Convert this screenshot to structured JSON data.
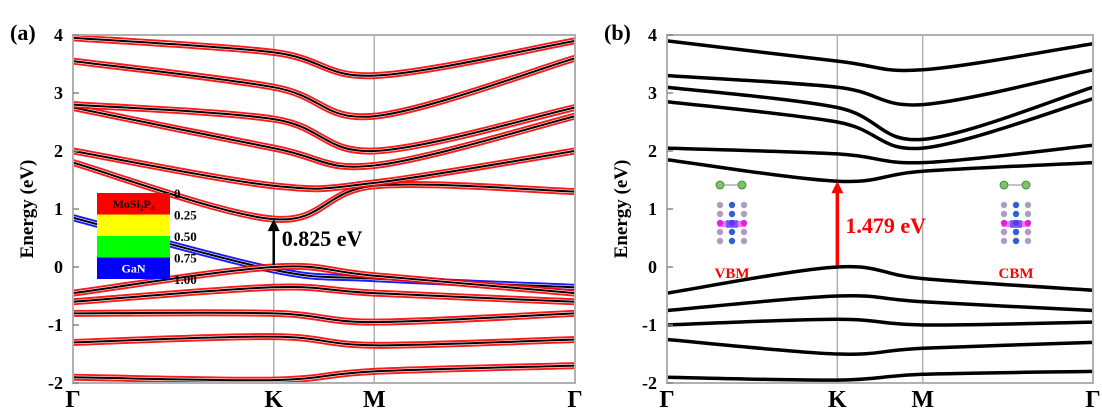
{
  "chart_data": [
    {
      "type": "line",
      "panel_label": "(a)",
      "ylabel": "Energy (eV)",
      "ylim": [
        -2,
        4
      ],
      "yticks": [
        "-2",
        "-1",
        "0",
        "1",
        "2",
        "3",
        "4"
      ],
      "xticks": [
        {
          "label": "Γ",
          "k": 0
        },
        {
          "label": "K",
          "k": 0.577
        },
        {
          "label": "M",
          "k": 0.866
        },
        {
          "label": "Γ",
          "k": 1.443
        }
      ],
      "grid": false,
      "annotation": {
        "text": "0.825 eV",
        "k": 0.577,
        "from": 0.0,
        "to": 0.825,
        "color": "#000000"
      },
      "legend": {
        "placement": "left",
        "type": "colorbar",
        "labels": [
          "0",
          "0.25",
          "0.50",
          "0.75",
          "1.00"
        ],
        "segments": [
          {
            "name": "MoSi₂P₄",
            "color": "#ff0000"
          },
          {
            "name": "",
            "color": "#ffff00"
          },
          {
            "name": "",
            "color": "#00ff00"
          },
          {
            "name": "GaN",
            "color": "#0000ff"
          }
        ]
      },
      "projection_colors": {
        "MoSi2P4": "#ff0000",
        "mixed_high": "#ffff00",
        "mixed_low": "#00ff00",
        "GaN": "#0000ff"
      },
      "series": [
        {
          "x": [
            0,
            0.577,
            0.866,
            1.443
          ],
          "y": [
            0.85,
            -0.05,
            -0.2,
            -0.35
          ],
          "projection": "GaN"
        },
        {
          "x": [
            0,
            0.577,
            0.866,
            1.443
          ],
          "y": [
            -0.45,
            0.0,
            -0.15,
            -0.45
          ],
          "projection": "MoSi2P4"
        },
        {
          "x": [
            0,
            0.577,
            0.866,
            1.443
          ],
          "y": [
            -0.6,
            -0.35,
            -0.45,
            -0.6
          ],
          "projection": "MoSi2P4"
        },
        {
          "x": [
            0,
            0.577,
            0.866,
            1.443
          ],
          "y": [
            -0.8,
            -0.8,
            -0.95,
            -0.8
          ],
          "projection": "MoSi2P4"
        },
        {
          "x": [
            0,
            0.577,
            0.866,
            1.443
          ],
          "y": [
            -1.3,
            -1.2,
            -1.35,
            -1.25
          ],
          "projection": "MoSi2P4"
        },
        {
          "x": [
            0,
            0.577,
            0.866,
            1.443
          ],
          "y": [
            -1.9,
            -1.95,
            -1.8,
            -1.7
          ],
          "projection": "MoSi2P4"
        },
        {
          "x": [
            0,
            0.577,
            0.866,
            1.443
          ],
          "y": [
            1.8,
            0.825,
            1.4,
            1.3
          ],
          "projection": "MoSi2P4"
        },
        {
          "x": [
            0,
            0.577,
            0.866,
            1.443
          ],
          "y": [
            2.0,
            1.4,
            1.45,
            2.0
          ],
          "projection": "MoSi2P4"
        },
        {
          "x": [
            0,
            0.577,
            0.866,
            1.443
          ],
          "y": [
            2.75,
            2.05,
            1.75,
            2.6
          ],
          "projection": "MoSi2P4"
        },
        {
          "x": [
            0,
            0.577,
            0.866,
            1.443
          ],
          "y": [
            2.8,
            2.55,
            2.0,
            2.75
          ],
          "projection": "MoSi2P4"
        },
        {
          "x": [
            0,
            0.577,
            0.866,
            1.443
          ],
          "y": [
            3.55,
            3.1,
            2.6,
            3.6
          ],
          "projection": "MoSi2P4"
        },
        {
          "x": [
            0,
            0.577,
            0.866,
            1.443
          ],
          "y": [
            3.95,
            3.7,
            3.3,
            3.9
          ],
          "projection": "MoSi2P4"
        }
      ]
    },
    {
      "type": "line",
      "panel_label": "(b)",
      "ylabel": "Energy (eV)",
      "ylim": [
        -2,
        4
      ],
      "yticks": [
        "-2",
        "-1",
        "0",
        "1",
        "2",
        "3",
        "4"
      ],
      "xticks": [
        {
          "label": "Γ",
          "k": 0
        },
        {
          "label": "K",
          "k": 0.577
        },
        {
          "label": "M",
          "k": 0.866
        },
        {
          "label": "Γ",
          "k": 1.443
        }
      ],
      "grid": false,
      "annotation": {
        "text": "1.479 eV",
        "k": 0.577,
        "from": 0.0,
        "to": 1.479,
        "color": "#ff0000"
      },
      "insets": [
        {
          "label": "VBM",
          "color": "#ff0000",
          "placement": "left"
        },
        {
          "label": "CBM",
          "color": "#ff0000",
          "placement": "right"
        }
      ],
      "series": [
        {
          "x": [
            0,
            0.577,
            0.866,
            1.443
          ],
          "y": [
            -0.45,
            0.0,
            -0.2,
            -0.4
          ]
        },
        {
          "x": [
            0,
            0.577,
            0.866,
            1.443
          ],
          "y": [
            -0.75,
            -0.5,
            -0.6,
            -0.75
          ]
        },
        {
          "x": [
            0,
            0.577,
            0.866,
            1.443
          ],
          "y": [
            -1.0,
            -0.9,
            -1.0,
            -0.95
          ]
        },
        {
          "x": [
            0,
            0.577,
            0.866,
            1.443
          ],
          "y": [
            -1.25,
            -1.5,
            -1.4,
            -1.3
          ]
        },
        {
          "x": [
            0,
            0.577,
            0.866,
            1.443
          ],
          "y": [
            -1.9,
            -1.95,
            -1.85,
            -1.8
          ]
        },
        {
          "x": [
            0,
            0.577,
            0.866,
            1.443
          ],
          "y": [
            1.85,
            1.479,
            1.65,
            1.8
          ]
        },
        {
          "x": [
            0,
            0.577,
            0.866,
            1.443
          ],
          "y": [
            2.05,
            1.95,
            1.8,
            2.1
          ]
        },
        {
          "x": [
            0,
            0.577,
            0.866,
            1.443
          ],
          "y": [
            2.85,
            2.5,
            2.05,
            2.9
          ]
        },
        {
          "x": [
            0,
            0.577,
            0.866,
            1.443
          ],
          "y": [
            3.1,
            2.75,
            2.2,
            3.1
          ]
        },
        {
          "x": [
            0,
            0.577,
            0.866,
            1.443
          ],
          "y": [
            3.3,
            3.1,
            2.8,
            3.4
          ]
        },
        {
          "x": [
            0,
            0.577,
            0.866,
            1.443
          ],
          "y": [
            3.9,
            3.55,
            3.4,
            3.85
          ]
        }
      ]
    }
  ]
}
